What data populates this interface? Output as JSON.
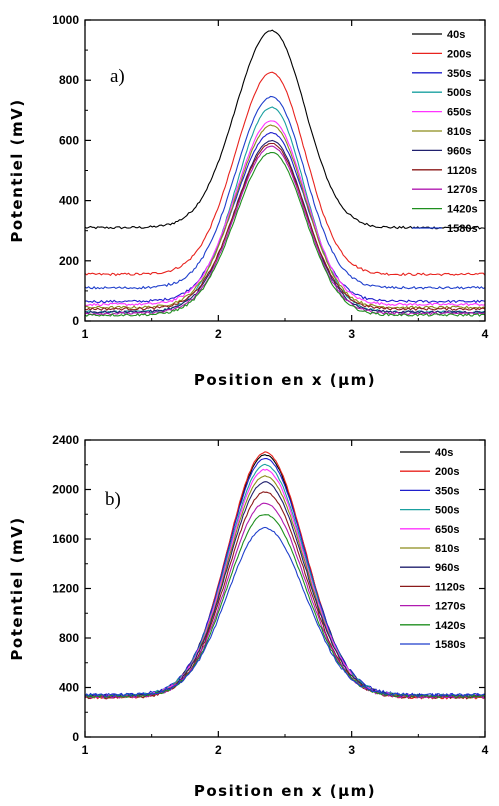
{
  "chart_data": [
    {
      "type": "line",
      "panel_label": "a)",
      "xlabel": "Position en x (µm)",
      "ylabel": "Potentiel (mV)",
      "xlim": [
        1,
        4
      ],
      "ylim": [
        0,
        1000
      ],
      "x_ticks": [
        1,
        2,
        3,
        4
      ],
      "y_ticks": [
        0,
        200,
        400,
        600,
        800,
        1000
      ],
      "legend_position": "top-right",
      "center_x": 2.4,
      "series": [
        {
          "name": "40s",
          "color": "#000000",
          "baseline": 310,
          "peak": 965
        },
        {
          "name": "200s",
          "color": "#e8231e",
          "baseline": 155,
          "peak": 825
        },
        {
          "name": "350s",
          "color": "#1f1fcc",
          "baseline": 65,
          "peak": 625
        },
        {
          "name": "500s",
          "color": "#1aa0a0",
          "baseline": 30,
          "peak": 710
        },
        {
          "name": "650s",
          "color": "#ff33ff",
          "baseline": 55,
          "peak": 665
        },
        {
          "name": "810s",
          "color": "#8c8c1a",
          "baseline": 45,
          "peak": 650
        },
        {
          "name": "960s",
          "color": "#20206e",
          "baseline": 30,
          "peak": 600
        },
        {
          "name": "1120s",
          "color": "#8b1a1a",
          "baseline": 40,
          "peak": 590
        },
        {
          "name": "1270s",
          "color": "#b01ab0",
          "baseline": 25,
          "peak": 580
        },
        {
          "name": "1420s",
          "color": "#1f8f1f",
          "baseline": 20,
          "peak": 560
        },
        {
          "name": "1580s",
          "color": "#1f3fcc",
          "baseline": 110,
          "peak": 745
        }
      ]
    },
    {
      "type": "line",
      "panel_label": "b)",
      "xlabel": "Position en x (µm)",
      "ylabel": "Potentiel (mV)",
      "xlim": [
        1,
        4
      ],
      "ylim": [
        0,
        2400
      ],
      "x_ticks": [
        1,
        2,
        3,
        4
      ],
      "y_ticks": [
        0,
        400,
        800,
        1200,
        1600,
        2000,
        2400
      ],
      "legend_position": "top-right",
      "center_x": 2.35,
      "series": [
        {
          "name": "40s",
          "color": "#000000",
          "baseline": 330,
          "peak": 2280
        },
        {
          "name": "200s",
          "color": "#e8231e",
          "baseline": 320,
          "peak": 2300
        },
        {
          "name": "350s",
          "color": "#1f1fcc",
          "baseline": 340,
          "peak": 2250
        },
        {
          "name": "500s",
          "color": "#1aa0a0",
          "baseline": 335,
          "peak": 2200
        },
        {
          "name": "650s",
          "color": "#ff33ff",
          "baseline": 330,
          "peak": 2160
        },
        {
          "name": "810s",
          "color": "#8c8c1a",
          "baseline": 325,
          "peak": 2110
        },
        {
          "name": "960s",
          "color": "#20206e",
          "baseline": 330,
          "peak": 2060
        },
        {
          "name": "1120s",
          "color": "#8b1a1a",
          "baseline": 320,
          "peak": 1980
        },
        {
          "name": "1270s",
          "color": "#b01ab0",
          "baseline": 325,
          "peak": 1890
        },
        {
          "name": "1420s",
          "color": "#1f8f1f",
          "baseline": 330,
          "peak": 1800
        },
        {
          "name": "1580s",
          "color": "#1f3fcc",
          "baseline": 340,
          "peak": 1690
        }
      ]
    }
  ]
}
